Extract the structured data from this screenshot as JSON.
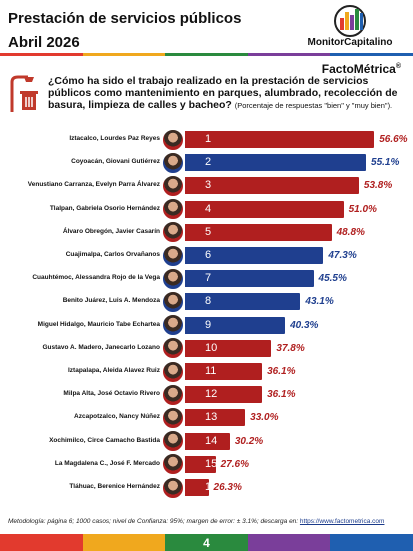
{
  "header": {
    "title_line1": "Prestación de servicios públicos",
    "title_line2": "Abril 2026",
    "logo_name": "MonitorCapitalino",
    "brand": "FactoMétrica",
    "registered": "®"
  },
  "question": {
    "text": "¿Cómo ha sido el trabajo realizado en la prestación de servicios públicos como mantenimiento en parques, alumbrado, recolección de basura, limpieza de calles y bacheo?",
    "note": "(Porcentaje de respuestas \"bien\" y \"muy bien\")."
  },
  "colors": {
    "red": "#b01f1f",
    "blue": "#1f3f8f",
    "stripe": [
      "#e23a2e",
      "#f0a81e",
      "#2a8a3e",
      "#7a3e9a",
      "#1f5fb0"
    ]
  },
  "chart_data": {
    "type": "bar",
    "orientation": "horizontal",
    "categories": [
      "Iztacalco, Lourdes Paz Reyes",
      "Coyoacán, Giovani Gutiérrez",
      "Venustiano Carranza, Evelyn Parra Álvarez",
      "Tlalpan, Gabriela Osorio Hernández",
      "Álvaro Obregón, Javier Casarín",
      "Cuajimalpa, Carlos Orvañanos",
      "Cuauhtémoc, Alessandra Rojo de la Vega",
      "Benito Juárez, Luis A. Mendoza",
      "Miguel Hidalgo, Mauricio Tabe Echartea",
      "Gustavo A. Madero, Janecarlo Lozano",
      "Iztapalapa, Aleida Alavez Ruiz",
      "Milpa Alta, José Octavio Rivero",
      "Azcapotzalco, Nancy Núñez",
      "Xochimilco, Circe Camacho Bastida",
      "La Magdalena C., José F. Mercado",
      "Tláhuac, Berenice Hernández"
    ],
    "ranks": [
      "1",
      "2",
      "3",
      "4",
      "5",
      "6",
      "7",
      "8",
      "9",
      "10",
      "11",
      "12",
      "13",
      "14",
      "15",
      "16"
    ],
    "values": [
      56.6,
      55.1,
      53.8,
      51.0,
      48.8,
      47.3,
      45.5,
      43.1,
      40.3,
      37.8,
      36.1,
      36.1,
      33.0,
      30.2,
      27.6,
      26.3
    ],
    "labels": [
      "56.6%",
      "55.1%",
      "53.8%",
      "51.0%",
      "48.8%",
      "47.3%",
      "45.5%",
      "43.1%",
      "40.3%",
      "37.8%",
      "36.1%",
      "36.1%",
      "33.0%",
      "30.2%",
      "27.6%",
      "26.3%"
    ],
    "bar_colors": [
      "red",
      "blue",
      "red",
      "red",
      "red",
      "blue",
      "blue",
      "blue",
      "blue",
      "red",
      "red",
      "red",
      "red",
      "red",
      "red",
      "red"
    ],
    "xlim": [
      0,
      60
    ]
  },
  "footer": {
    "method": "Metodología: página 6; 1000 casos; nivel de Confianza: 95%; margen de error: ± 3.1%; descarga en:",
    "link": "https://www.factometrica.com",
    "page": "4"
  }
}
